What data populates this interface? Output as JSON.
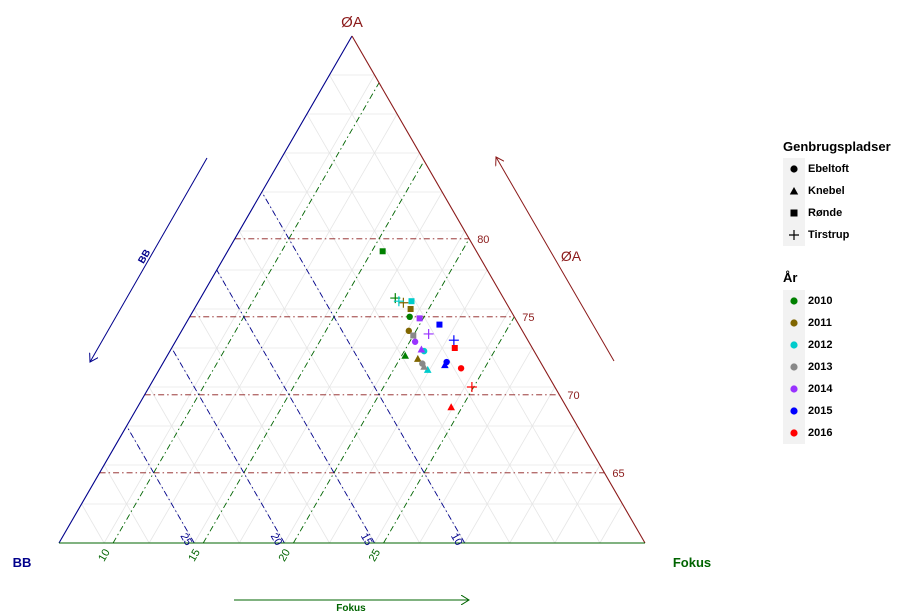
{
  "chart_data": {
    "type": "scatter",
    "subtype": "ternary",
    "axes": {
      "top": {
        "label": "ØA",
        "color": "#8b1a1a",
        "ticks": [
          65,
          70,
          75,
          80
        ]
      },
      "left": {
        "label": "BB",
        "color": "#00008b",
        "ticks": [
          10,
          15,
          20,
          25
        ]
      },
      "right": {
        "label": "Fokus",
        "color": "#006400",
        "ticks": [
          10,
          15,
          20,
          25
        ]
      }
    },
    "arrow_labels": {
      "top": "ØA",
      "left": "BB",
      "bottom": "Fokus"
    },
    "grid": true,
    "legend_position": "right",
    "shape_legend": {
      "title": "Genbrugspladser",
      "items": [
        {
          "label": "Ebeltoft",
          "shape": "circle"
        },
        {
          "label": "Knebel",
          "shape": "triangle"
        },
        {
          "label": "Rønde",
          "shape": "square"
        },
        {
          "label": "Tirstrup",
          "shape": "plus"
        }
      ]
    },
    "color_legend": {
      "title": "År",
      "items": [
        {
          "label": "2010",
          "color": "#008000"
        },
        {
          "label": "2011",
          "color": "#806600"
        },
        {
          "label": "2012",
          "color": "#00cccc"
        },
        {
          "label": "2013",
          "color": "#888888"
        },
        {
          "label": "2014",
          "color": "#9933ff"
        },
        {
          "label": "2015",
          "color": "#0000ff"
        },
        {
          "label": "2016",
          "color": "#ff0000"
        }
      ]
    },
    "points": [
      {
        "site": "Rønde",
        "year": "2010",
        "OA": 79.2,
        "Fokus": 15.6
      },
      {
        "site": "Tirstrup",
        "year": "2010",
        "OA": 76.2,
        "Fokus": 17.8
      },
      {
        "site": "Ebeltoft",
        "year": "2010",
        "OA": 75.0,
        "Fokus": 19.2
      },
      {
        "site": "Knebel",
        "year": "2010",
        "OA": 72.5,
        "Fokus": 20.2
      },
      {
        "site": "Tirstrup",
        "year": "2011",
        "OA": 75.9,
        "Fokus": 18.4
      },
      {
        "site": "Rønde",
        "year": "2011",
        "OA": 75.5,
        "Fokus": 19.0
      },
      {
        "site": "Ebeltoft",
        "year": "2011",
        "OA": 74.1,
        "Fokus": 19.6
      },
      {
        "site": "Knebel",
        "year": "2011",
        "OA": 72.3,
        "Fokus": 21.0
      },
      {
        "site": "Tirstrup",
        "year": "2012",
        "OA": 76.0,
        "Fokus": 18.1
      },
      {
        "site": "Rønde",
        "year": "2012",
        "OA": 76.0,
        "Fokus": 18.8
      },
      {
        "site": "Ebeltoft",
        "year": "2012",
        "OA": 72.8,
        "Fokus": 21.1
      },
      {
        "site": "Knebel",
        "year": "2012",
        "OA": 71.6,
        "Fokus": 21.9
      },
      {
        "site": "Rønde",
        "year": "2013",
        "OA": 73.8,
        "Fokus": 20.0
      },
      {
        "site": "Ebeltoft",
        "year": "2013",
        "OA": 72.0,
        "Fokus": 21.4
      },
      {
        "site": "Knebel",
        "year": "2013",
        "OA": 71.8,
        "Fokus": 21.6
      },
      {
        "site": "Rønde",
        "year": "2014",
        "OA": 74.9,
        "Fokus": 19.8
      },
      {
        "site": "Tirstrup",
        "year": "2014",
        "OA": 73.9,
        "Fokus": 20.8
      },
      {
        "site": "Ebeltoft",
        "year": "2014",
        "OA": 73.4,
        "Fokus": 20.3
      },
      {
        "site": "Knebel",
        "year": "2014",
        "OA": 72.9,
        "Fokus": 20.9
      },
      {
        "site": "Rønde",
        "year": "2015",
        "OA": 74.5,
        "Fokus": 21.1
      },
      {
        "site": "Tirstrup",
        "year": "2015",
        "OA": 73.5,
        "Fokus": 22.4
      },
      {
        "site": "Ebeltoft",
        "year": "2015",
        "OA": 72.1,
        "Fokus": 22.7
      },
      {
        "site": "Knebel",
        "year": "2015",
        "OA": 71.9,
        "Fokus": 22.7
      },
      {
        "site": "Rønde",
        "year": "2016",
        "OA": 73.0,
        "Fokus": 22.7
      },
      {
        "site": "Ebeltoft",
        "year": "2016",
        "OA": 71.7,
        "Fokus": 23.7
      },
      {
        "site": "Tirstrup",
        "year": "2016",
        "OA": 70.5,
        "Fokus": 24.9
      },
      {
        "site": "Knebel",
        "year": "2016",
        "OA": 69.2,
        "Fokus": 24.4
      }
    ]
  }
}
